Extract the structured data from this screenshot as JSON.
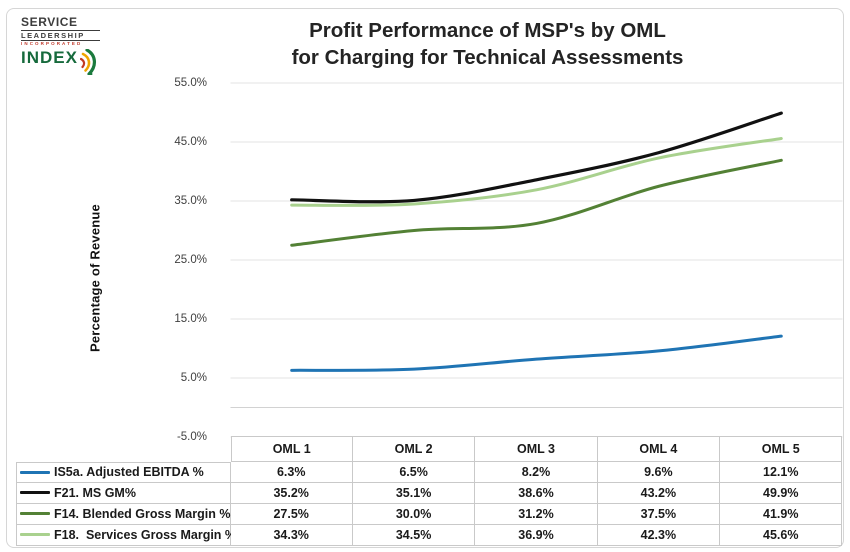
{
  "logo": {
    "service": "SERVICE",
    "leadership": "LEADERSHIP",
    "incorporated": "INCORPORATED",
    "index": "INDEX"
  },
  "title": {
    "line1": "Profit Performance of MSP's by OML",
    "line2": "for Charging for Technical Assessments"
  },
  "chart_data": {
    "type": "line",
    "title": "Profit Performance of MSP's by OML for Charging for Technical Assessments",
    "xlabel": "",
    "ylabel": "Percentage of Revenue",
    "ylim": [
      -5,
      55
    ],
    "ytick_labels": [
      "55.0%",
      "45.0%",
      "35.0%",
      "25.0%",
      "15.0%",
      "5.0%",
      "-5.0%"
    ],
    "axis_line_at": 0,
    "grid": true,
    "smoothed_lines": true,
    "legend_position": "table-left",
    "categories": [
      "OML 1",
      "OML 2",
      "OML 3",
      "OML 4",
      "OML 5"
    ],
    "series": [
      {
        "name": "IS5a. Adjusted EBITDA %",
        "color": "#1f74b4",
        "values": [
          6.3,
          6.5,
          8.2,
          9.6,
          12.1
        ],
        "display": [
          "6.3%",
          "6.5%",
          "8.2%",
          "9.6%",
          "12.1%"
        ]
      },
      {
        "name": "F21. MS GM%",
        "color": "#111111",
        "values": [
          35.2,
          35.1,
          38.6,
          43.2,
          49.9
        ],
        "display": [
          "35.2%",
          "35.1%",
          "38.6%",
          "43.2%",
          "49.9%"
        ]
      },
      {
        "name": "F14. Blended Gross Margin %",
        "color": "#538135",
        "values": [
          27.5,
          30.0,
          31.2,
          37.5,
          41.9
        ],
        "display": [
          "27.5%",
          "30.0%",
          "31.2%",
          "37.5%",
          "41.9%"
        ]
      },
      {
        "name": "F18.  Services Gross Margin %",
        "color": "#a9d18e",
        "values": [
          34.3,
          34.5,
          36.9,
          42.3,
          45.6
        ],
        "display": [
          "34.3%",
          "34.5%",
          "36.9%",
          "42.3%",
          "45.6%"
        ]
      }
    ],
    "colors": {
      "gridline": "#e3e3e3",
      "zero_axis": "#d2d2d2",
      "table_border": "#c9c9c9"
    }
  }
}
